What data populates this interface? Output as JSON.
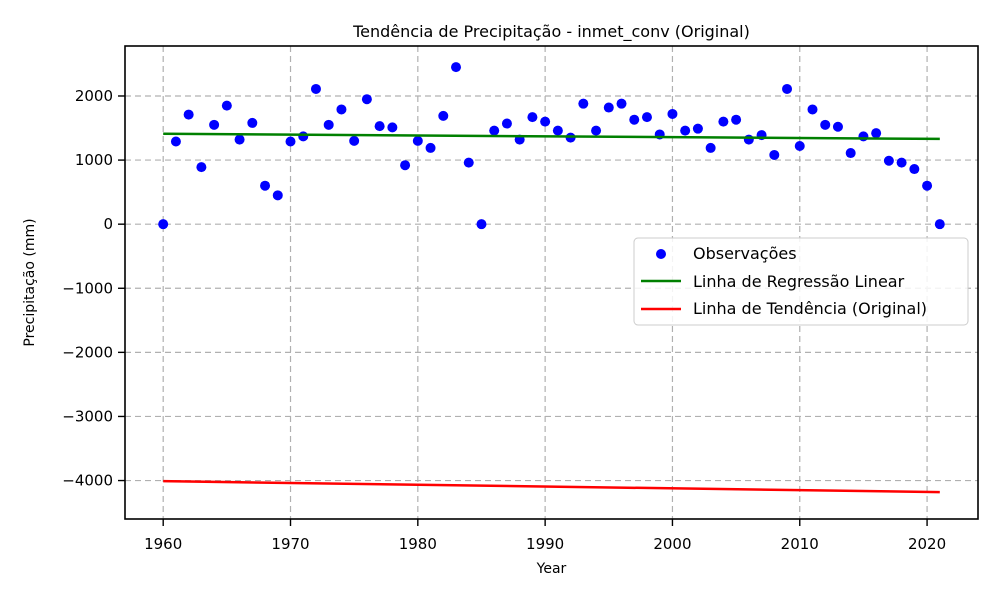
{
  "chart_data": {
    "type": "scatter",
    "title": "Tendência de Precipitação - inmet_conv (Original)",
    "xlabel": "Year",
    "ylabel": "Precipitação (mm)",
    "xlim": [
      1957,
      2024
    ],
    "ylim": [
      -4600,
      2780
    ],
    "xticks": [
      1960,
      1970,
      1980,
      1990,
      2000,
      2010,
      2020
    ],
    "yticks": [
      -4000,
      -3000,
      -2000,
      -1000,
      0,
      1000,
      2000
    ],
    "ytick_labels": [
      "−4000",
      "−3000",
      "−2000",
      "−1000",
      "0",
      "1000",
      "2000"
    ],
    "grid": true,
    "legend_position": "center-right",
    "series": [
      {
        "name": "Observações",
        "kind": "scatter",
        "color": "#0000ff",
        "x": [
          1960,
          1961,
          1962,
          1963,
          1964,
          1965,
          1966,
          1967,
          1968,
          1969,
          1970,
          1971,
          1972,
          1973,
          1974,
          1975,
          1976,
          1977,
          1978,
          1979,
          1980,
          1981,
          1982,
          1983,
          1984,
          1985,
          1986,
          1987,
          1988,
          1989,
          1990,
          1991,
          1992,
          1993,
          1994,
          1995,
          1996,
          1997,
          1998,
          1999,
          2000,
          2001,
          2002,
          2003,
          2004,
          2005,
          2006,
          2007,
          2008,
          2009,
          2010,
          2011,
          2012,
          2013,
          2014,
          2015,
          2016,
          2017,
          2018,
          2019,
          2020,
          2021
        ],
        "y": [
          0,
          1290,
          1710,
          890,
          1550,
          1850,
          1320,
          1580,
          600,
          450,
          1290,
          1370,
          2110,
          1550,
          1790,
          1300,
          1950,
          1530,
          1510,
          920,
          1300,
          1190,
          1690,
          2450,
          960,
          0,
          1460,
          1570,
          1320,
          1670,
          1600,
          1460,
          1350,
          1880,
          1460,
          1820,
          1880,
          1630,
          1670,
          1400,
          1720,
          1460,
          1490,
          1190,
          1600,
          1630,
          1320,
          1390,
          1080,
          2110,
          1220,
          1790,
          1550,
          1520,
          1110,
          1370,
          1420,
          990,
          960,
          860,
          600,
          0
        ]
      },
      {
        "name": "Linha de Regressão Linear",
        "kind": "line",
        "color": "#008000",
        "x": [
          1960,
          2021
        ],
        "y": [
          1410,
          1330
        ]
      },
      {
        "name": "Linha de Tendência (Original)",
        "kind": "line",
        "color": "#ff0000",
        "x": [
          1960,
          2021
        ],
        "y": [
          -4010,
          -4180
        ]
      }
    ]
  }
}
